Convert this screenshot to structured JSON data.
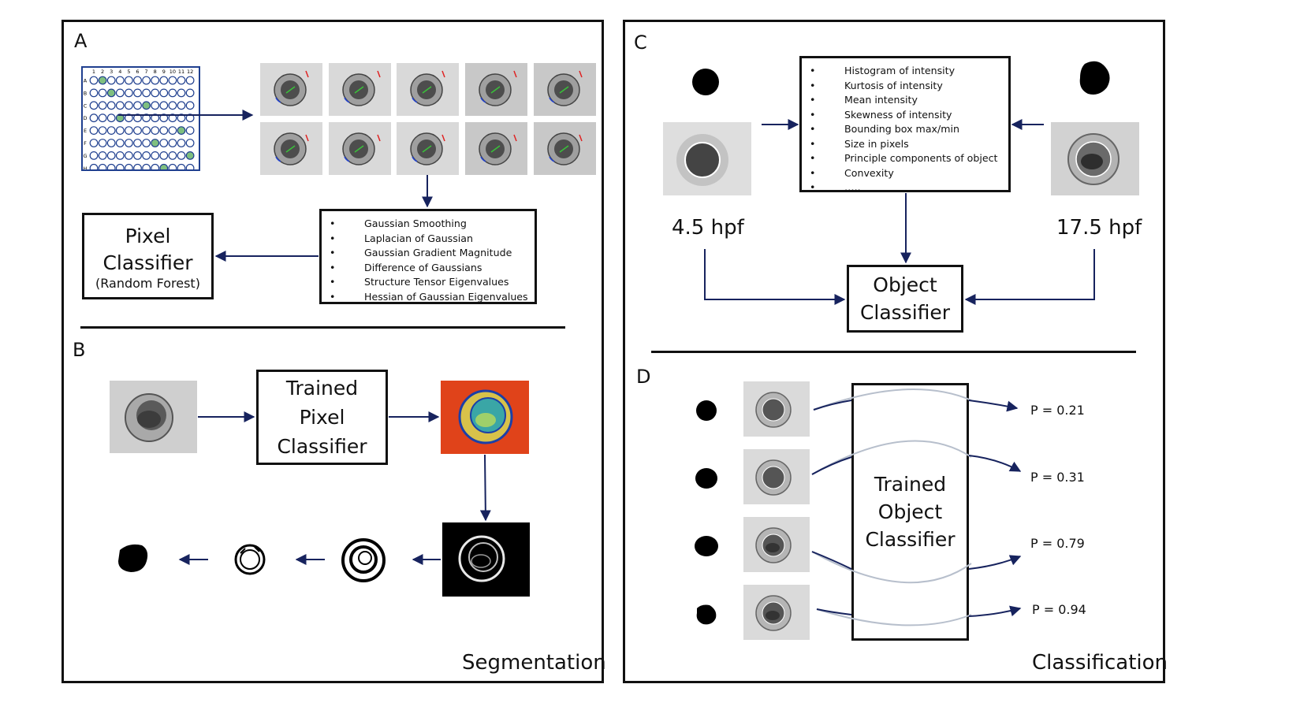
{
  "panels": {
    "a_letter": "A",
    "b_letter": "B",
    "c_letter": "C",
    "d_letter": "D",
    "left_footer": "Segmentation",
    "right_footer": "Classification"
  },
  "plate": {
    "columns": [
      "1",
      "2",
      "3",
      "4",
      "5",
      "6",
      "7",
      "8",
      "9",
      "10",
      "11",
      "12"
    ],
    "rows": [
      "A",
      "B",
      "C",
      "D",
      "E",
      "F",
      "G",
      "H"
    ],
    "accent": "#7fbf7f",
    "outline": "#1f3f8f"
  },
  "panel_a": {
    "features": [
      "Gaussian Smoothing",
      "Laplacian of Gaussian",
      "Gaussian Gradient Magnitude",
      "Difference of Gaussians",
      "Structure Tensor Eigenvalues",
      "Hessian of Gaussian Eigenvalues"
    ],
    "pixel_classifier": {
      "line1": "Pixel",
      "line2": "Classifier",
      "sub": "(Random Forest)"
    }
  },
  "panel_b": {
    "trained_pixel_classifier": {
      "line1": "Trained",
      "line2": "Pixel",
      "line3": "Classifier"
    },
    "prob_map_color": "#e0431a"
  },
  "panel_c": {
    "features": [
      "Histogram of intensity",
      "Kurtosis of intensity",
      "Mean intensity",
      "Skewness of intensity",
      "Bounding box max/min",
      "Size in pixels",
      "Principle components of object",
      "Convexity",
      "….."
    ],
    "left_label": "4.5 hpf",
    "right_label": "17.5 hpf",
    "object_classifier": {
      "line1": "Object",
      "line2": "Classifier"
    }
  },
  "panel_d": {
    "trained_object_classifier": {
      "line1": "Trained",
      "line2": "Object",
      "line3": "Classifier"
    },
    "probabilities": [
      "P = 0.21",
      "P = 0.31",
      "P = 0.79",
      "P = 0.94"
    ]
  },
  "colors": {
    "arrow": "#17235e",
    "curve": "#b7bfcc"
  }
}
